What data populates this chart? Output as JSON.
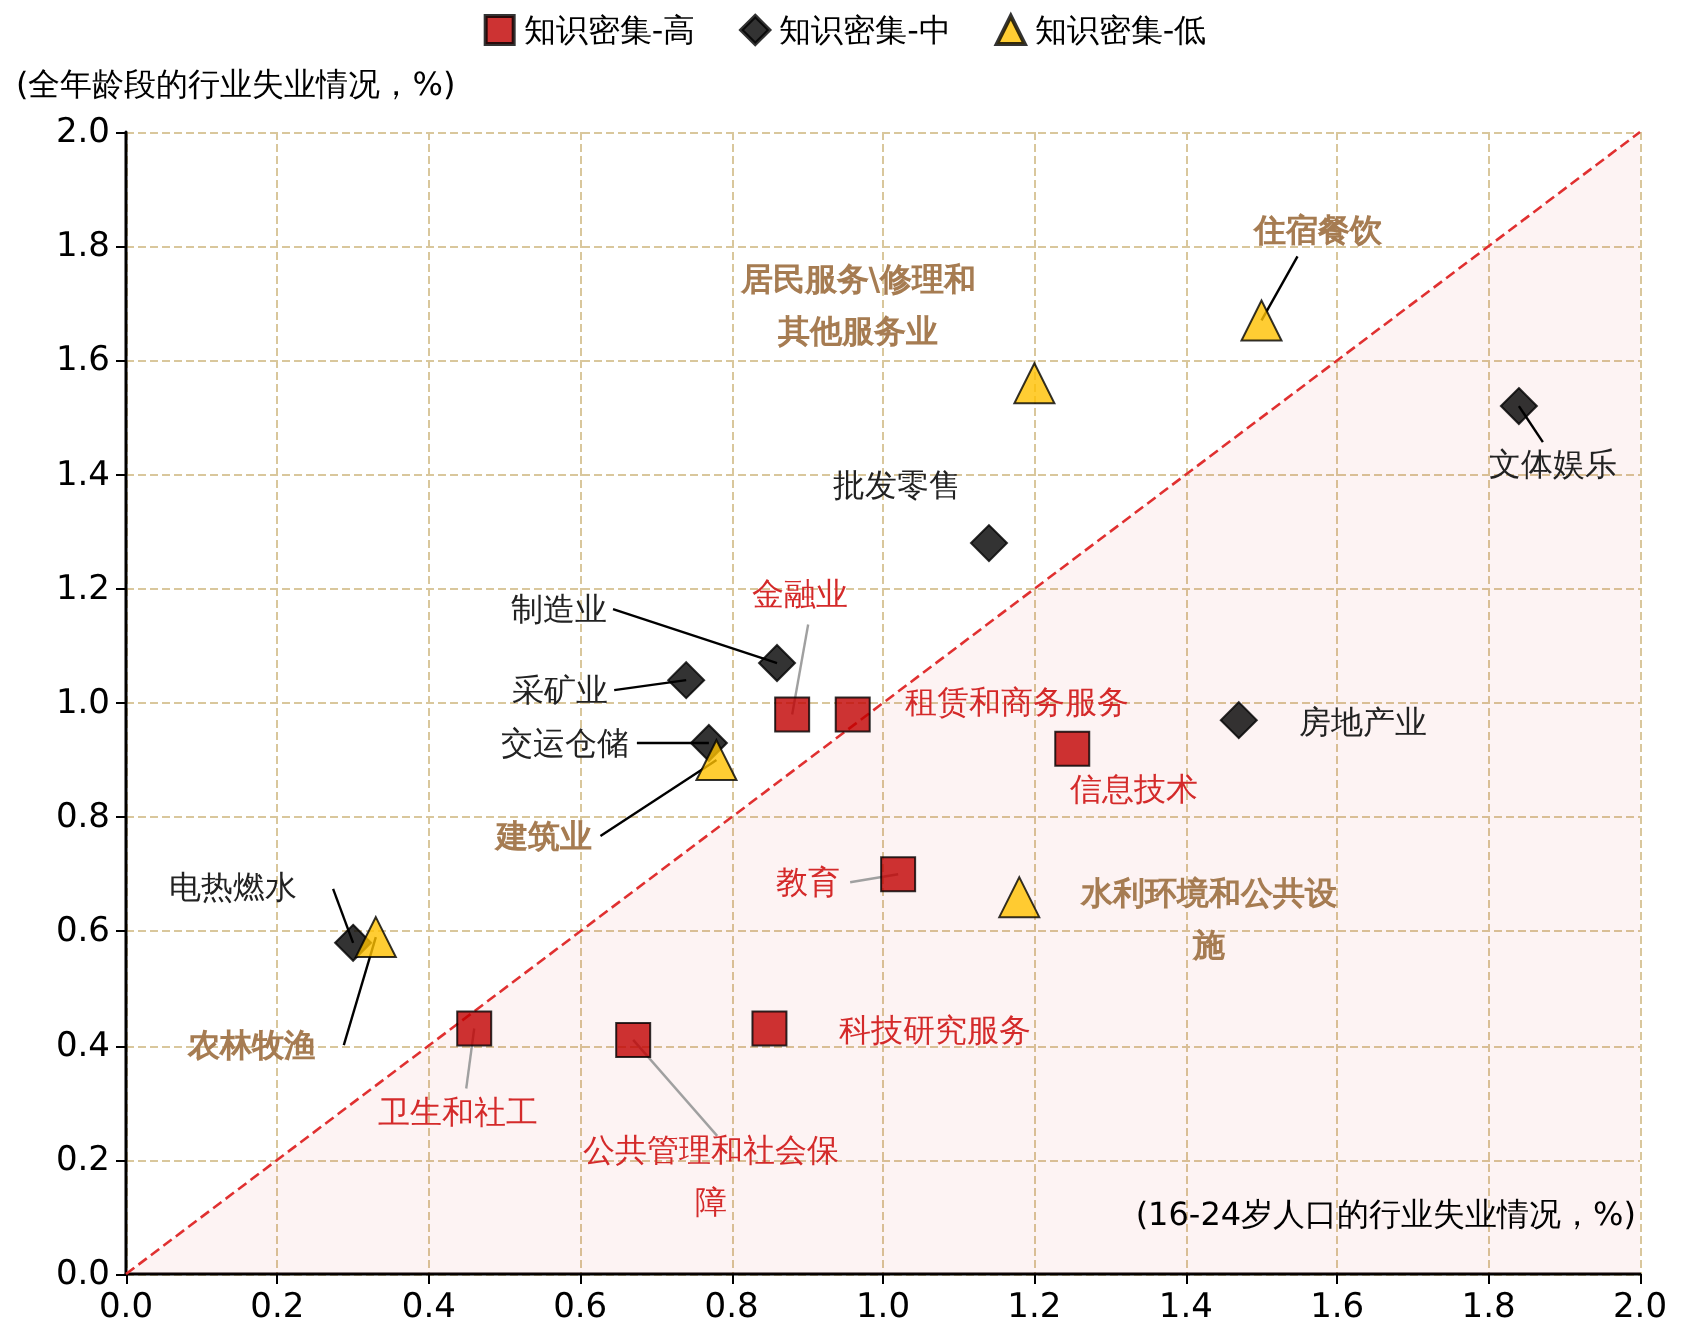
{
  "chart_data": {
    "type": "scatter",
    "xlabel": "(16-24岁人口的行业失业情况，%)",
    "ylabel": "(全年龄段的行业失业情况，%)",
    "xlim": [
      0,
      2
    ],
    "ylim": [
      0,
      2
    ],
    "xticks": [
      {
        "value": 0,
        "label": "0.0"
      },
      {
        "value": 0.2,
        "label": "0.2"
      },
      {
        "value": 0.4,
        "label": "0.4"
      },
      {
        "value": 0.6,
        "label": "0.6"
      },
      {
        "value": 0.8,
        "label": "0.8"
      },
      {
        "value": 1,
        "label": "1.0"
      },
      {
        "value": 1.2,
        "label": "1.2"
      },
      {
        "value": 1.4,
        "label": "1.4"
      },
      {
        "value": 1.6,
        "label": "1.6"
      },
      {
        "value": 1.8,
        "label": "1.8"
      },
      {
        "value": 2,
        "label": "2.0"
      }
    ],
    "yticks": [
      {
        "value": 0,
        "label": "0.0"
      },
      {
        "value": 0.2,
        "label": "0.2"
      },
      {
        "value": 0.4,
        "label": "0.4"
      },
      {
        "value": 0.6,
        "label": "0.6"
      },
      {
        "value": 0.8,
        "label": "0.8"
      },
      {
        "value": 1,
        "label": "1.0"
      },
      {
        "value": 1.2,
        "label": "1.2"
      },
      {
        "value": 1.4,
        "label": "1.4"
      },
      {
        "value": 1.6,
        "label": "1.6"
      },
      {
        "value": 1.8,
        "label": "1.8"
      },
      {
        "value": 2,
        "label": "2.0"
      }
    ],
    "grid": true,
    "legend": "top",
    "series": [
      {
        "name": "知识密集-高",
        "color": "#c00000",
        "marker": "square",
        "x": [
          0.88,
          0.96,
          1.25,
          1.02,
          0.85,
          0.67,
          0.46
        ],
        "values": [
          0.98,
          0.98,
          0.92,
          0.7,
          0.43,
          0.41,
          0.43
        ]
      },
      {
        "name": "知识密集-中",
        "color": "#000000",
        "marker": "diamond",
        "x": [
          0.86,
          0.74,
          0.77,
          1.14,
          1.84,
          1.47,
          0.3
        ],
        "values": [
          1.07,
          1.04,
          0.93,
          1.28,
          1.52,
          0.97,
          0.58
        ]
      },
      {
        "name": "知识密集-低",
        "color": "#ffc000",
        "marker": "triangle",
        "x": [
          1.5,
          1.2,
          0.78,
          1.18,
          0.33
        ],
        "values": [
          1.67,
          1.56,
          0.9,
          0.66,
          0.59
        ]
      },
      {
        "type": "area",
        "color": "#e03030",
        "line_style": "dashed",
        "marker": "none",
        "x": [
          0,
          2
        ],
        "values": [
          0,
          2
        ]
      }
    ],
    "annotations": [
      {
        "text": "金融业",
        "x": 0.88,
        "y": 0.98
      },
      {
        "text": "租赁和商务服务",
        "x": 0.96,
        "y": 0.98
      },
      {
        "text": "信息技术",
        "x": 1.25,
        "y": 0.92
      },
      {
        "text": "教育",
        "x": 1.02,
        "y": 0.7
      },
      {
        "text": "科技研究服务",
        "x": 0.85,
        "y": 0.43
      },
      {
        "text": "公共管理和社会保障",
        "x": 0.67,
        "y": 0.41
      },
      {
        "text": "卫生和社工",
        "x": 0.46,
        "y": 0.43
      },
      {
        "text": "制造业",
        "x": 0.86,
        "y": 1.07
      },
      {
        "text": "采矿业",
        "x": 0.74,
        "y": 1.04
      },
      {
        "text": "交运仓储",
        "x": 0.77,
        "y": 0.93
      },
      {
        "text": "批发零售",
        "x": 1.14,
        "y": 1.28
      },
      {
        "text": "文体娱乐",
        "x": 1.84,
        "y": 1.52
      },
      {
        "text": "房地产业",
        "x": 1.47,
        "y": 0.97
      },
      {
        "text": "电热燃水",
        "x": 0.3,
        "y": 0.58
      },
      {
        "text": "住宿餐饮",
        "x": 1.5,
        "y": 1.67
      },
      {
        "text": "居民服务\\修理和其他服务业",
        "x": 1.2,
        "y": 1.56
      },
      {
        "text": "建筑业",
        "x": 0.78,
        "y": 0.9
      },
      {
        "text": "水利环境和公共设施",
        "x": 1.18,
        "y": 0.66
      },
      {
        "text": "农林牧渔",
        "x": 0.33,
        "y": 0.59
      }
    ]
  }
}
